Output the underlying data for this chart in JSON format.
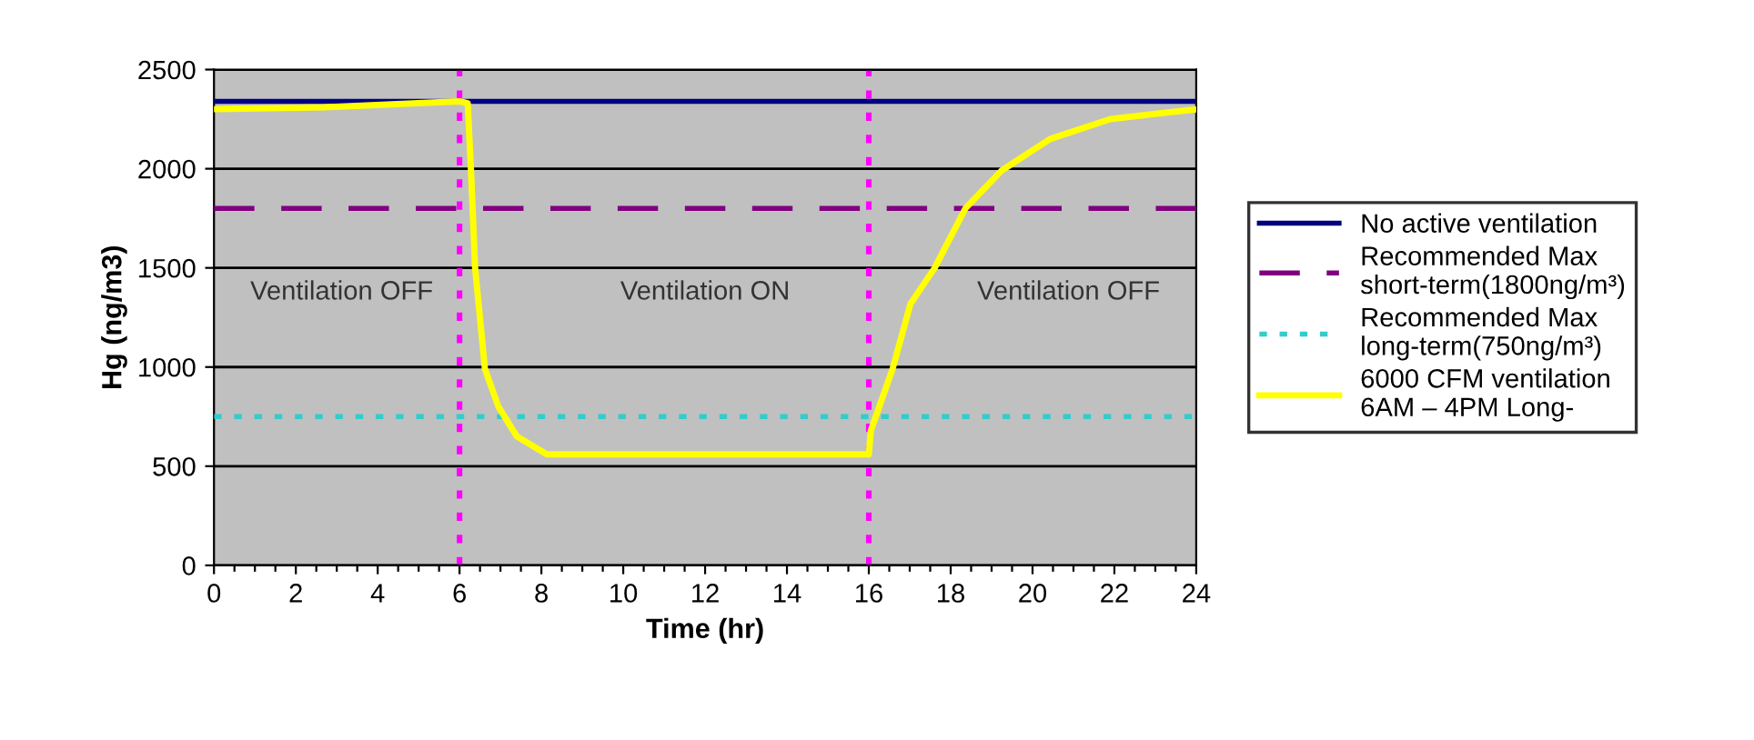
{
  "chart_data": {
    "type": "line",
    "xlabel": "Time (hr)",
    "ylabel": "Hg (ng/m3)",
    "xlim": [
      0,
      24
    ],
    "ylim": [
      0,
      2500
    ],
    "xticks": [
      0,
      {
        "value": 0.5,
        "label": null
      },
      {
        "value": 1,
        "label": null
      },
      {
        "value": 1.5,
        "label": null
      },
      2,
      {
        "value": 2.5,
        "label": null
      },
      {
        "value": 3,
        "label": null
      },
      {
        "value": 3.5,
        "label": null
      },
      4,
      {
        "value": 4.5,
        "label": null
      },
      {
        "value": 5,
        "label": null
      },
      {
        "value": 5.5,
        "label": null
      },
      6,
      {
        "value": 6.5,
        "label": null
      },
      {
        "value": 7,
        "label": null
      },
      {
        "value": 7.5,
        "label": null
      },
      8,
      {
        "value": 8.5,
        "label": null
      },
      {
        "value": 9,
        "label": null
      },
      {
        "value": 9.5,
        "label": null
      },
      10,
      {
        "value": 10.5,
        "label": null
      },
      {
        "value": 11,
        "label": null
      },
      {
        "value": 11.5,
        "label": null
      },
      12,
      {
        "value": 12.5,
        "label": null
      },
      {
        "value": 13,
        "label": null
      },
      {
        "value": 13.5,
        "label": null
      },
      14,
      {
        "value": 14.5,
        "label": null
      },
      {
        "value": 15,
        "label": null
      },
      {
        "value": 15.5,
        "label": null
      },
      16,
      {
        "value": 16.5,
        "label": null
      },
      {
        "value": 17,
        "label": null
      },
      {
        "value": 17.5,
        "label": null
      },
      18,
      {
        "value": 18.5,
        "label": null
      },
      {
        "value": 19,
        "label": null
      },
      {
        "value": 19.5,
        "label": null
      },
      20,
      {
        "value": 20.5,
        "label": null
      },
      {
        "value": 21,
        "label": null
      },
      {
        "value": 21.5,
        "label": null
      },
      22,
      {
        "value": 22.5,
        "label": null
      },
      {
        "value": 23,
        "label": null
      },
      {
        "value": 23.5,
        "label": null
      },
      24
    ],
    "yticks": [
      0,
      500,
      1000,
      1500,
      2000,
      2500
    ],
    "grid": "y",
    "legend": "right",
    "series": [
      {
        "name": "No active ventilation",
        "color": "#000080",
        "line_style": "solid",
        "x": [
          0,
          24
        ],
        "values": [
          2340,
          2340
        ]
      },
      {
        "name": "Recommended Max\nshort-term(1800ng/m³)",
        "color": "#800080",
        "line_style": "dashed",
        "x": [
          0,
          24
        ],
        "values": [
          1800,
          1800
        ]
      },
      {
        "name": "Recommended Max\nlong-term(750ng/m³)",
        "color": "#33cccc",
        "line_style": "dotted",
        "x": [
          0,
          24
        ],
        "values": [
          750,
          750
        ]
      },
      {
        "name": "6000 CFM ventilation\n6AM – 4PM Long-",
        "color": "#ffff00",
        "line_style": "solid",
        "x": [
          0,
          2.7,
          6,
          6.2,
          6.28,
          6.38,
          6.62,
          6.95,
          7.4,
          8.13,
          16,
          16.05,
          16.58,
          17.02,
          17.61,
          18.36,
          19.24,
          20.43,
          21.9,
          24
        ],
        "values": [
          2300,
          2310,
          2340,
          2330,
          1990,
          1500,
          990,
          800,
          650,
          560,
          560,
          680,
          990,
          1320,
          1500,
          1800,
          1990,
          2150,
          2250,
          2300
        ]
      }
    ],
    "ref_lines": [
      {
        "axis": "x",
        "value": 6,
        "color": "#ff00ff",
        "line_style": "dotted"
      },
      {
        "axis": "x",
        "value": 16,
        "color": "#ff00ff",
        "line_style": "dotted"
      }
    ],
    "annotations": [
      "Ventilation OFF",
      "Ventilation ON",
      "Ventilation OFF"
    ]
  }
}
